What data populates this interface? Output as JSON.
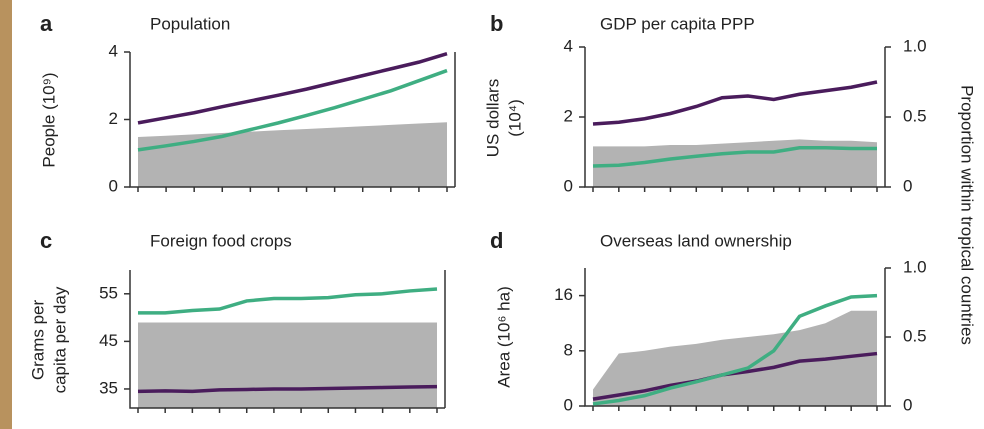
{
  "chart_data": [
    {
      "type": "line",
      "panel": "a",
      "title": "Population",
      "ylabel": [
        "People (10⁹)"
      ],
      "categories": [
        null,
        null,
        null,
        null,
        null,
        null,
        null,
        null,
        null,
        null,
        null,
        null
      ],
      "ylim": [
        0,
        4
      ],
      "yticks": [
        0,
        2,
        4
      ],
      "y2lim": [
        0,
        1
      ],
      "series": [
        {
          "type": "area",
          "axis": "y2",
          "color": "#b3b3b3",
          "values": [
            0.37,
            0.38,
            0.39,
            0.4,
            0.41,
            0.42,
            0.43,
            0.44,
            0.45,
            0.46,
            0.47,
            0.48
          ]
        },
        {
          "type": "line",
          "color": "#4a1c5c",
          "values": [
            1.9,
            2.05,
            2.2,
            2.38,
            2.55,
            2.72,
            2.9,
            3.1,
            3.3,
            3.5,
            3.7,
            3.95
          ]
        },
        {
          "type": "line",
          "color": "#3fae82",
          "values": [
            1.1,
            1.22,
            1.35,
            1.5,
            1.7,
            1.9,
            2.12,
            2.35,
            2.6,
            2.85,
            3.15,
            3.45
          ]
        }
      ]
    },
    {
      "type": "line",
      "panel": "b",
      "title": "GDP per capita PPP",
      "ylabel": [
        "US dollars",
        "(10⁴)"
      ],
      "y2label": "Proportion within tropical countries",
      "categories": [
        null,
        null,
        null,
        null,
        null,
        null,
        null,
        null,
        null,
        null,
        null,
        null
      ],
      "ylim": [
        0,
        4
      ],
      "yticks": [
        0,
        2,
        4
      ],
      "y2lim": [
        0,
        1
      ],
      "y2ticks": [
        0,
        0.5,
        {
          "value": 1,
          "label": "1.0"
        }
      ],
      "series": [
        {
          "type": "area",
          "axis": "y2",
          "color": "#b3b3b3",
          "values": [
            0.29,
            0.29,
            0.29,
            0.3,
            0.3,
            0.31,
            0.32,
            0.33,
            0.34,
            0.33,
            0.33,
            0.32
          ]
        },
        {
          "type": "line",
          "color": "#4a1c5c",
          "values": [
            1.8,
            1.85,
            1.95,
            2.1,
            2.3,
            2.55,
            2.6,
            2.5,
            2.65,
            2.75,
            2.85,
            3.0
          ]
        },
        {
          "type": "line",
          "color": "#3fae82",
          "values": [
            0.6,
            0.62,
            0.7,
            0.8,
            0.88,
            0.95,
            1.0,
            1.0,
            1.12,
            1.12,
            1.1,
            1.1
          ]
        }
      ]
    },
    {
      "type": "line",
      "panel": "c",
      "title": "Foreign food crops",
      "ylabel": [
        "Grams per",
        "capita per day"
      ],
      "categories": [
        null,
        null,
        null,
        null,
        null,
        null,
        null,
        null,
        null,
        null,
        null,
        null
      ],
      "ylim": [
        31,
        60
      ],
      "yticks": [
        35,
        45,
        55
      ],
      "y2lim": [
        0,
        1
      ],
      "series": [
        {
          "type": "area",
          "axis": "y2",
          "color": "#b3b3b3",
          "values": [
            0.62,
            0.62,
            0.62,
            0.62,
            0.62,
            0.62,
            0.62,
            0.62,
            0.62,
            0.62,
            0.62,
            0.62
          ]
        },
        {
          "type": "line",
          "color": "#4a1c5c",
          "values": [
            34.5,
            34.6,
            34.5,
            34.8,
            34.9,
            35,
            35,
            35.1,
            35.2,
            35.3,
            35.4,
            35.5
          ]
        },
        {
          "type": "line",
          "color": "#3fae82",
          "values": [
            51,
            51,
            51.5,
            51.8,
            53.5,
            54,
            54,
            54.2,
            54.8,
            55,
            55.6,
            56
          ]
        }
      ]
    },
    {
      "type": "line",
      "panel": "d",
      "title": "Overseas land ownership",
      "ylabel": [
        "Area (10⁶ ha)"
      ],
      "categories": [
        null,
        null,
        null,
        null,
        null,
        null,
        null,
        null,
        null,
        null,
        null,
        null
      ],
      "ylim": [
        0,
        20
      ],
      "yticks": [
        0,
        8,
        16
      ],
      "y2lim": [
        0,
        1
      ],
      "y2ticks": [
        0,
        0.5,
        {
          "value": 1,
          "label": "1.0"
        }
      ],
      "series": [
        {
          "type": "area",
          "axis": "y2",
          "color": "#b3b3b3",
          "values": [
            0.12,
            0.38,
            0.4,
            0.43,
            0.45,
            0.48,
            0.5,
            0.52,
            0.55,
            0.6,
            0.69,
            0.69
          ]
        },
        {
          "type": "line",
          "color": "#4a1c5c",
          "values": [
            1,
            1.6,
            2.2,
            3,
            3.6,
            4.5,
            5,
            5.6,
            6.5,
            6.8,
            7.2,
            7.6
          ]
        },
        {
          "type": "line",
          "color": "#3fae82",
          "values": [
            0.3,
            0.8,
            1.5,
            2.6,
            3.5,
            4.5,
            5.5,
            8,
            13,
            14.5,
            15.8,
            16
          ]
        }
      ]
    }
  ]
}
